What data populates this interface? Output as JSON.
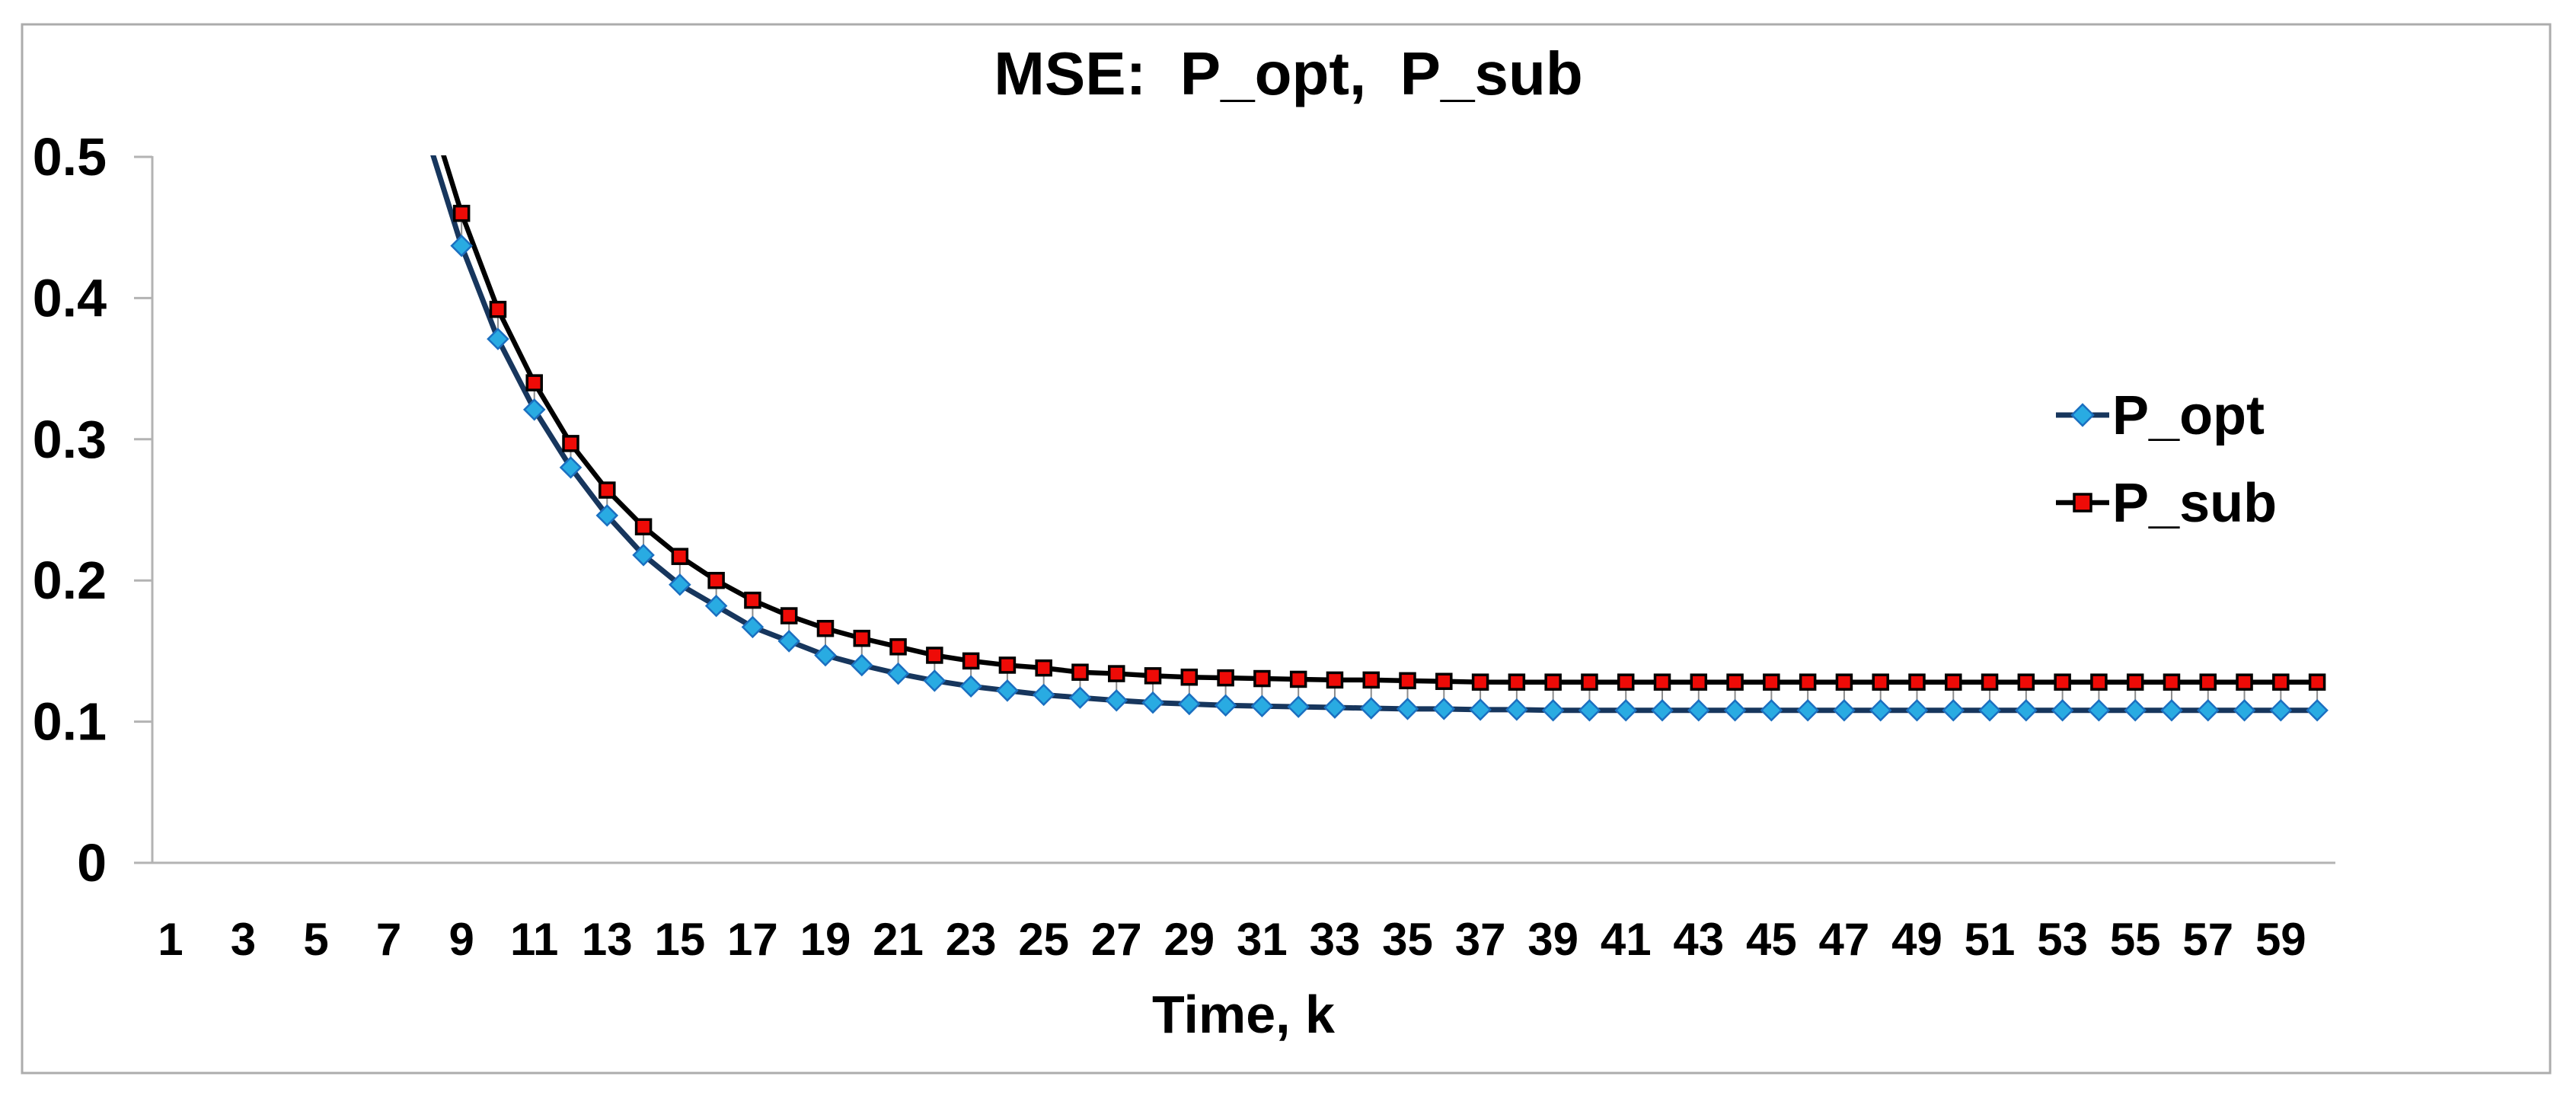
{
  "chart_data": {
    "type": "line",
    "title": "MSE:  P_opt,  P_sub",
    "xlabel": "Time, k",
    "ylabel": "",
    "ylim": [
      0,
      0.5
    ],
    "xlim": [
      1,
      60
    ],
    "grid": false,
    "legend_position": "right-center",
    "y_ticks": [
      {
        "value": 0,
        "label": "0"
      },
      {
        "value": 0.1,
        "label": "0.1"
      },
      {
        "value": 0.2,
        "label": "0.2"
      },
      {
        "value": 0.3,
        "label": "0.3"
      },
      {
        "value": 0.4,
        "label": "0.4"
      },
      {
        "value": 0.5,
        "label": "0.5"
      }
    ],
    "x_ticks": [
      1,
      3,
      5,
      7,
      9,
      11,
      13,
      15,
      17,
      19,
      21,
      23,
      25,
      27,
      29,
      31,
      33,
      35,
      37,
      39,
      41,
      43,
      45,
      47,
      49,
      51,
      53,
      55,
      57,
      59
    ],
    "x": [
      8,
      9,
      10,
      11,
      12,
      13,
      14,
      15,
      16,
      17,
      18,
      19,
      20,
      21,
      22,
      23,
      24,
      25,
      26,
      27,
      28,
      29,
      30,
      31,
      32,
      33,
      34,
      35,
      36,
      37,
      38,
      39,
      40,
      41,
      42,
      43,
      44,
      45,
      46,
      47,
      48,
      49,
      50,
      51,
      52,
      53,
      54,
      55,
      56,
      57,
      58,
      59,
      60
    ],
    "series": [
      {
        "name": "P_opt",
        "line_color": "#17365D",
        "line_width": 7,
        "marker": "diamond",
        "marker_color": "#29ABE2",
        "marker_edge_color": "#1B6FC0",
        "values": [
          0.519,
          0.437,
          0.371,
          0.321,
          0.28,
          0.246,
          0.218,
          0.197,
          0.182,
          0.167,
          0.157,
          0.147,
          0.14,
          0.134,
          0.129,
          0.125,
          0.122,
          0.119,
          0.117,
          0.115,
          0.1135,
          0.1125,
          0.1115,
          0.111,
          0.1105,
          0.11,
          0.1095,
          0.109,
          0.109,
          0.1085,
          0.1085,
          0.108,
          0.108,
          0.108,
          0.108,
          0.108,
          0.108,
          0.108,
          0.108,
          0.108,
          0.108,
          0.108,
          0.108,
          0.108,
          0.108,
          0.108,
          0.108,
          0.108,
          0.108,
          0.108,
          0.108,
          0.108,
          0.108
        ]
      },
      {
        "name": "P_sub",
        "line_color": "#000000",
        "line_width": 6.5,
        "marker": "square",
        "marker_color": "#EE0B07",
        "marker_edge_color": "#000000",
        "values": [
          0.543,
          0.46,
          0.392,
          0.34,
          0.297,
          0.264,
          0.238,
          0.217,
          0.2,
          0.186,
          0.175,
          0.166,
          0.159,
          0.153,
          0.147,
          0.143,
          0.14,
          0.138,
          0.135,
          0.134,
          0.1325,
          0.1315,
          0.131,
          0.1305,
          0.13,
          0.1295,
          0.1295,
          0.129,
          0.1285,
          0.128,
          0.128,
          0.128,
          0.128,
          0.128,
          0.128,
          0.128,
          0.128,
          0.128,
          0.128,
          0.128,
          0.128,
          0.128,
          0.128,
          0.128,
          0.128,
          0.128,
          0.128,
          0.128,
          0.128,
          0.128,
          0.128,
          0.128,
          0.128
        ]
      }
    ],
    "high_low_lines": {
      "show": true,
      "color": "#8C8C8C",
      "width": 2
    },
    "axis_color": "#B3B3B3",
    "frame_color": "#ACACAC",
    "steady_state": {
      "P_opt": 0.108,
      "P_sub": 0.128
    }
  }
}
